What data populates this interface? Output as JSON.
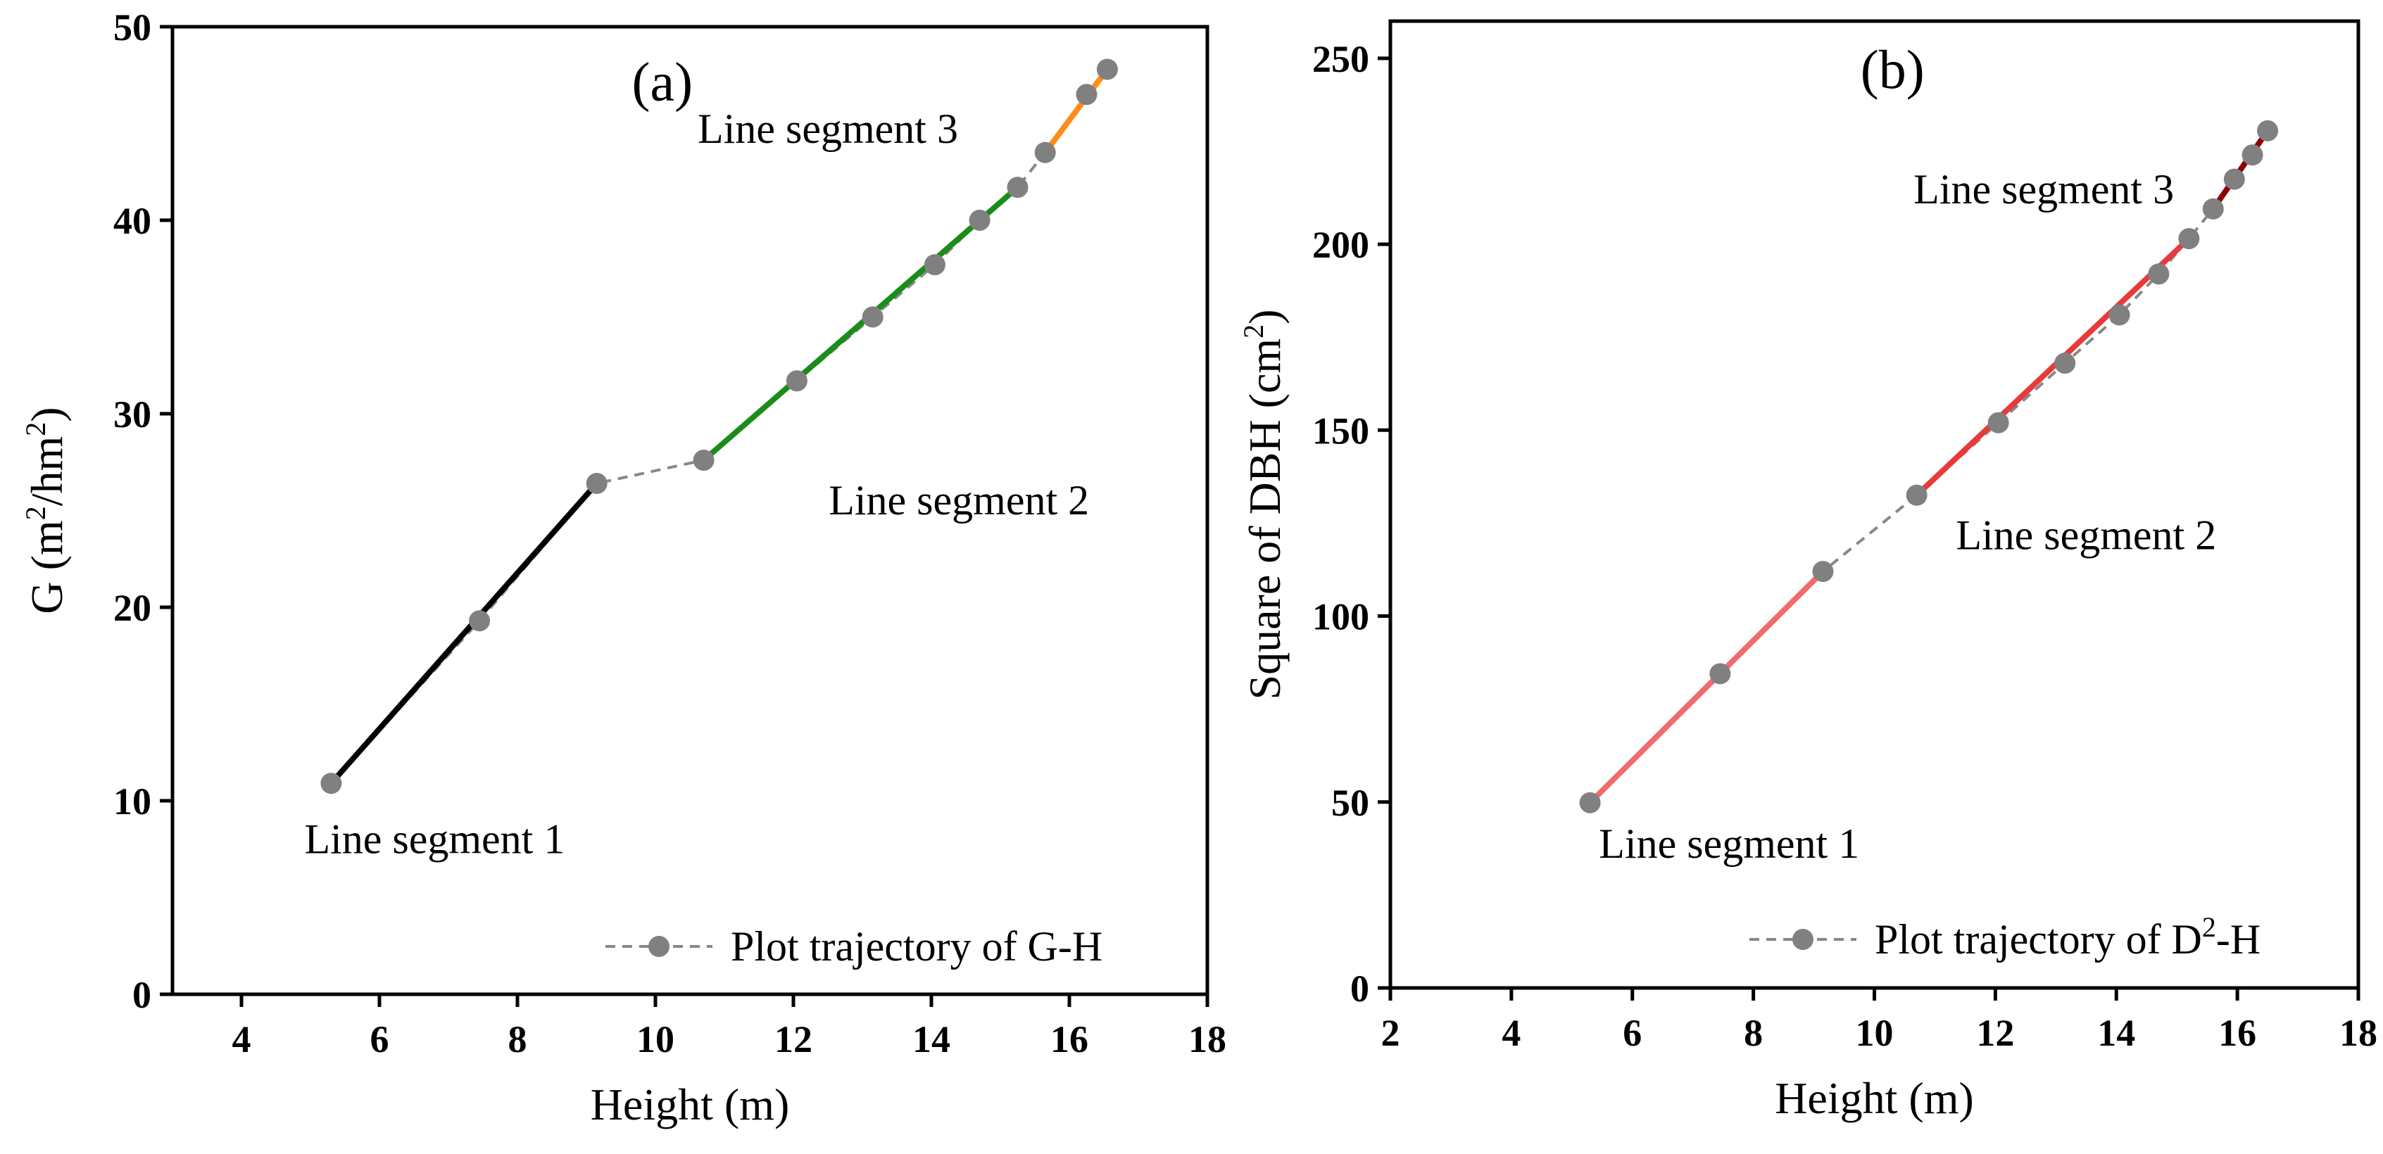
{
  "chart_data": [
    {
      "type": "line",
      "panel_label": "(a)",
      "xlabel": "Height (m)",
      "ylabel": "G (m²/hm²)",
      "ylabel_parts": {
        "pre": "G (m",
        "sup1": "2",
        "mid": "/hm",
        "sup2": "2",
        "post": ")"
      },
      "xlim": [
        3,
        18
      ],
      "ylim": [
        0,
        50
      ],
      "xticks": [
        4,
        6,
        8,
        10,
        12,
        14,
        16,
        18
      ],
      "yticks": [
        0,
        10,
        20,
        30,
        40,
        50
      ],
      "grid": false,
      "legend_position": "bottom-right",
      "series": [
        {
          "name": "Plot trajectory of G-H",
          "style": "dashed-with-markers",
          "line_color": "#888888",
          "marker_color": "#808080",
          "x": [
            5.3,
            7.45,
            9.15,
            10.7,
            12.05,
            13.15,
            14.05,
            14.7,
            15.25,
            15.65,
            16.25,
            16.55
          ],
          "y": [
            10.9,
            19.3,
            26.4,
            27.6,
            31.7,
            35.0,
            37.7,
            40.0,
            41.7,
            43.5,
            46.5,
            47.8
          ]
        }
      ],
      "segments": [
        {
          "label": "Line segment 1",
          "color": "#000000",
          "x": [
            5.3,
            9.15
          ],
          "y": [
            10.9,
            26.4
          ],
          "label_anchor": {
            "x": 6.8,
            "y": 7.3
          }
        },
        {
          "label": "Line segment 2",
          "color": "#1a8c1a",
          "x": [
            10.7,
            15.25
          ],
          "y": [
            27.6,
            41.7
          ],
          "label_anchor": {
            "x": 14.4,
            "y": 24.8
          }
        },
        {
          "label": "Line segment 3",
          "color": "#ff8c1a",
          "x": [
            15.65,
            16.55
          ],
          "y": [
            43.5,
            47.8
          ],
          "label_anchor": {
            "x": 12.5,
            "y": 44.0
          }
        }
      ]
    },
    {
      "type": "line",
      "panel_label": "(b)",
      "xlabel": "Height (m)",
      "ylabel": "Square of DBH (cm²)",
      "ylabel_parts": {
        "pre": "Square of DBH (cm",
        "sup1": "2",
        "mid": "",
        "sup2": "",
        "post": ")"
      },
      "xlim": [
        2,
        18
      ],
      "ylim": [
        0,
        260
      ],
      "xticks": [
        2,
        4,
        6,
        8,
        10,
        12,
        14,
        16,
        18
      ],
      "yticks": [
        0,
        50,
        100,
        150,
        200,
        250
      ],
      "grid": false,
      "legend_position": "bottom-right",
      "series": [
        {
          "name": "Plot trajectory of D²-H",
          "name_parts": {
            "pre": "Plot trajectory of D",
            "sup": "2",
            "post": "-H"
          },
          "style": "dashed-with-markers",
          "line_color": "#888888",
          "marker_color": "#808080",
          "x": [
            5.3,
            7.45,
            9.15,
            10.7,
            12.05,
            13.15,
            14.05,
            14.7,
            15.2,
            15.6,
            15.95,
            16.25,
            16.5
          ],
          "y": [
            49.8,
            84.5,
            112.0,
            132.5,
            152.0,
            168.0,
            181.0,
            192.0,
            201.5,
            209.5,
            217.5,
            224.0,
            230.5
          ]
        }
      ],
      "segments": [
        {
          "label": "Line segment 1",
          "color": "#f26b6b",
          "x": [
            5.3,
            9.15
          ],
          "y": [
            49.8,
            112.0
          ],
          "label_anchor": {
            "x": 7.6,
            "y": 35.0
          }
        },
        {
          "label": "Line segment 2",
          "color": "#e83a3a",
          "x": [
            10.7,
            15.2
          ],
          "y": [
            132.5,
            201.5
          ],
          "label_anchor": {
            "x": 13.5,
            "y": 118.0
          }
        },
        {
          "label": "Line segment 3",
          "color": "#8b0000",
          "x": [
            15.6,
            16.5
          ],
          "y": [
            209.5,
            230.5
          ],
          "label_anchor": {
            "x": 12.8,
            "y": 211.0
          }
        }
      ]
    }
  ]
}
